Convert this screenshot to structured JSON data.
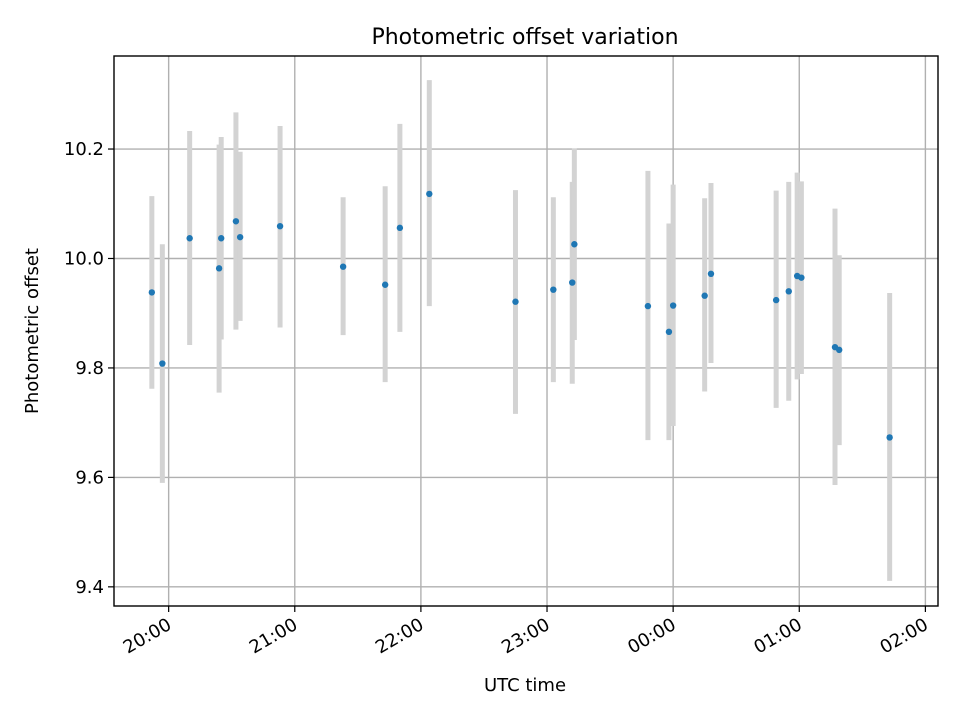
{
  "chart_data": {
    "type": "scatter",
    "title": "Photometric offset variation",
    "xlabel": "UTC time",
    "ylabel": "Photometric offset",
    "xlim": [
      "19:34",
      "02:06"
    ],
    "ylim": [
      9.365,
      10.37
    ],
    "xticks": [
      "20:00",
      "21:00",
      "22:00",
      "23:00",
      "00:00",
      "01:00",
      "02:00"
    ],
    "yticks": [
      "9.4",
      "9.6",
      "9.8",
      "10.0",
      "10.2"
    ],
    "grid": true,
    "marker_color": "#1f77b4",
    "errorbar_color": "#d3d3d3",
    "series": [
      {
        "points": [
          {
            "x": "19:52",
            "y": 9.938,
            "ylo": 9.762,
            "yhi": 10.114
          },
          {
            "x": "19:57",
            "y": 9.808,
            "ylo": 9.59,
            "yhi": 10.026
          },
          {
            "x": "20:10",
            "y": 10.037,
            "ylo": 9.842,
            "yhi": 10.233
          },
          {
            "x": "20:24",
            "y": 9.982,
            "ylo": 9.755,
            "yhi": 10.208
          },
          {
            "x": "20:25",
            "y": 10.037,
            "ylo": 9.852,
            "yhi": 10.222
          },
          {
            "x": "20:32",
            "y": 10.068,
            "ylo": 9.87,
            "yhi": 10.267
          },
          {
            "x": "20:34",
            "y": 10.039,
            "ylo": 9.886,
            "yhi": 10.195
          },
          {
            "x": "20:53",
            "y": 10.059,
            "ylo": 9.874,
            "yhi": 10.242
          },
          {
            "x": "21:23",
            "y": 9.985,
            "ylo": 9.86,
            "yhi": 10.112
          },
          {
            "x": "21:43",
            "y": 9.952,
            "ylo": 9.774,
            "yhi": 10.132
          },
          {
            "x": "21:50",
            "y": 10.056,
            "ylo": 9.866,
            "yhi": 10.246
          },
          {
            "x": "22:04",
            "y": 10.118,
            "ylo": 9.913,
            "yhi": 10.326
          },
          {
            "x": "22:45",
            "y": 9.921,
            "ylo": 9.716,
            "yhi": 10.125
          },
          {
            "x": "23:03",
            "y": 9.943,
            "ylo": 9.774,
            "yhi": 10.112
          },
          {
            "x": "23:12",
            "y": 9.956,
            "ylo": 9.771,
            "yhi": 10.14
          },
          {
            "x": "23:13",
            "y": 10.026,
            "ylo": 9.851,
            "yhi": 10.201
          },
          {
            "x": "23:48",
            "y": 9.913,
            "ylo": 9.668,
            "yhi": 10.16
          },
          {
            "x": "23:58",
            "y": 9.866,
            "ylo": 9.668,
            "yhi": 10.064
          },
          {
            "x": "00:00",
            "y": 9.914,
            "ylo": 9.694,
            "yhi": 10.135
          },
          {
            "x": "00:15",
            "y": 9.932,
            "ylo": 9.757,
            "yhi": 10.11
          },
          {
            "x": "00:18",
            "y": 9.972,
            "ylo": 9.809,
            "yhi": 10.138
          },
          {
            "x": "00:49",
            "y": 9.924,
            "ylo": 9.727,
            "yhi": 10.124
          },
          {
            "x": "00:55",
            "y": 9.94,
            "ylo": 9.74,
            "yhi": 10.14
          },
          {
            "x": "00:59",
            "y": 9.968,
            "ylo": 9.779,
            "yhi": 10.157
          },
          {
            "x": "01:01",
            "y": 9.965,
            "ylo": 9.789,
            "yhi": 10.141
          },
          {
            "x": "01:17",
            "y": 9.838,
            "ylo": 9.586,
            "yhi": 10.091
          },
          {
            "x": "01:19",
            "y": 9.833,
            "ylo": 9.659,
            "yhi": 10.006
          },
          {
            "x": "01:43",
            "y": 9.673,
            "ylo": 9.411,
            "yhi": 9.937
          }
        ]
      }
    ]
  }
}
